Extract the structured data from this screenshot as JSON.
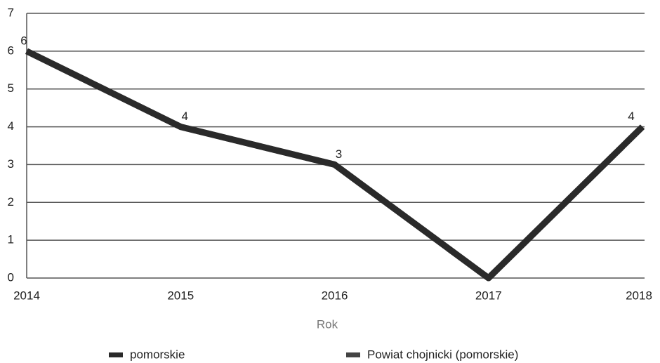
{
  "chart_data": {
    "type": "line",
    "x": [
      2014,
      2015,
      2016,
      2017,
      2018
    ],
    "xlim": [
      2014,
      2018
    ],
    "xticks": [
      2014,
      2015,
      2016,
      2017,
      2018
    ],
    "ylim": [
      0,
      7
    ],
    "yticks": [
      0,
      1,
      2,
      3,
      4,
      5,
      6,
      7
    ],
    "x_label": "Rok",
    "grid": true,
    "legend": "bottom",
    "series": [
      {
        "name": "pomorskie",
        "color": "#2a2a2a",
        "values": [
          6,
          4,
          3,
          0,
          4
        ],
        "value_labels": [
          "6",
          "4",
          "3",
          null,
          "4"
        ]
      },
      {
        "name": "Powiat chojnicki (pomorskie)",
        "color": "#444444",
        "values": [
          6,
          4,
          3,
          0,
          4
        ]
      }
    ]
  }
}
